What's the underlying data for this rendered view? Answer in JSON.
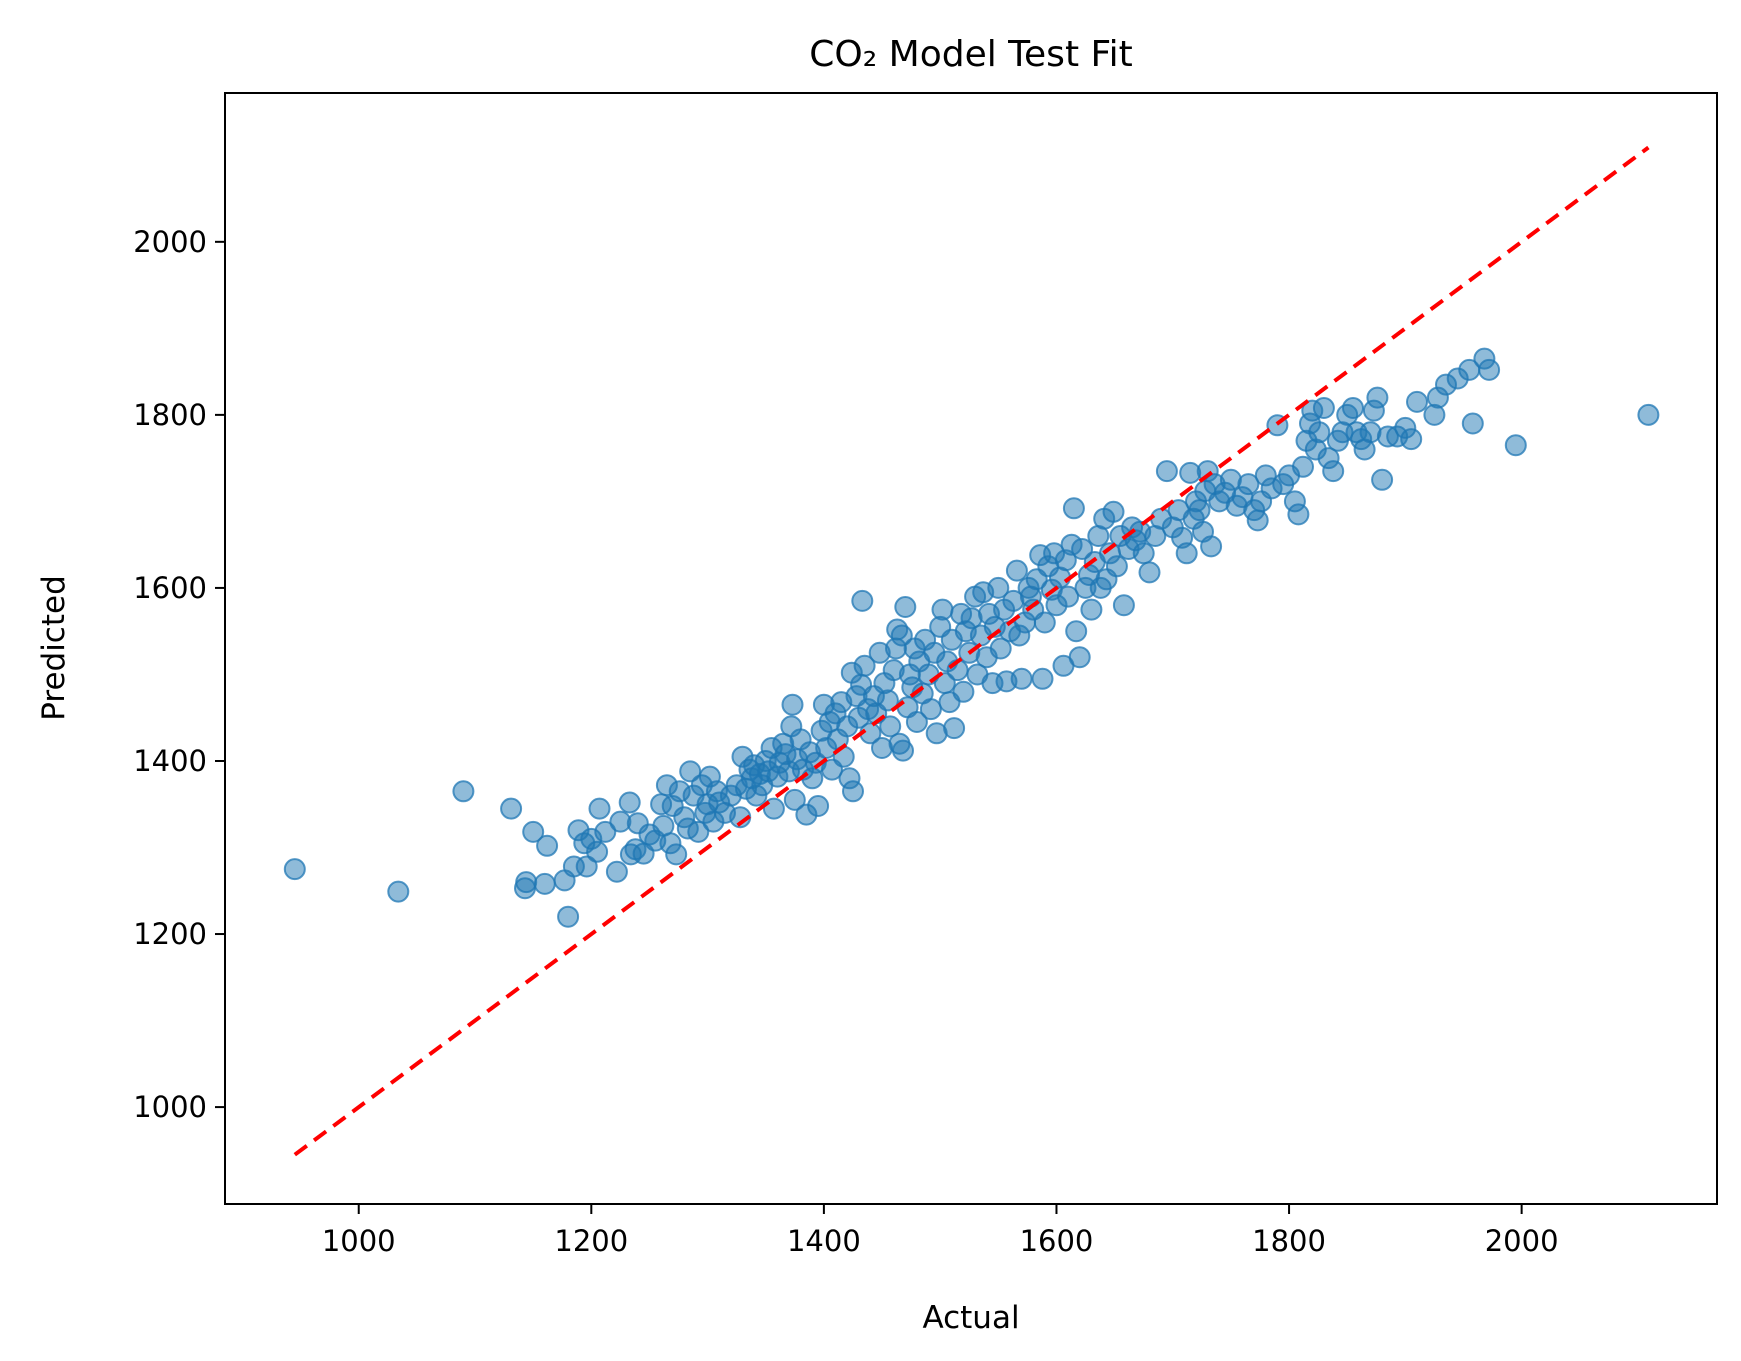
{
  "chart_data": {
    "type": "scatter",
    "title": "CO₂ Model Test Fit",
    "xlabel": "Actual",
    "ylabel": "Predicted",
    "xlim": [
      885,
      2168
    ],
    "ylim": [
      888,
      2172
    ],
    "x_ticks": [
      1000,
      1200,
      1400,
      1600,
      1800,
      2000
    ],
    "y_ticks": [
      1000,
      1200,
      1400,
      1600,
      1800,
      2000
    ],
    "grid": false,
    "legend": "none",
    "colors": {
      "points": "#1f77b4",
      "reference_line": "#ff0000"
    },
    "point_alpha": 0.5,
    "reference_line": {
      "style": "dashed",
      "from": [
        945,
        945
      ],
      "to": [
        2109,
        2109
      ]
    },
    "series": [
      {
        "points": [
          [
            945,
            1275
          ],
          [
            1034,
            1249
          ],
          [
            1090,
            1365
          ],
          [
            1131,
            1345
          ],
          [
            1143,
            1253
          ],
          [
            1144,
            1260
          ],
          [
            1150,
            1318
          ],
          [
            1160,
            1258
          ],
          [
            1162,
            1302
          ],
          [
            1177,
            1262
          ],
          [
            1180,
            1220
          ],
          [
            1185,
            1278
          ],
          [
            1189,
            1320
          ],
          [
            1194,
            1305
          ],
          [
            1196,
            1278
          ],
          [
            1200,
            1310
          ],
          [
            1205,
            1295
          ],
          [
            1207,
            1345
          ],
          [
            1212,
            1318
          ],
          [
            1222,
            1272
          ],
          [
            1225,
            1330
          ],
          [
            1233,
            1352
          ],
          [
            1234,
            1292
          ],
          [
            1238,
            1298
          ],
          [
            1240,
            1328
          ],
          [
            1245,
            1293
          ],
          [
            1250,
            1315
          ],
          [
            1255,
            1308
          ],
          [
            1260,
            1350
          ],
          [
            1262,
            1325
          ],
          [
            1265,
            1372
          ],
          [
            1268,
            1305
          ],
          [
            1270,
            1348
          ],
          [
            1273,
            1292
          ],
          [
            1276,
            1365
          ],
          [
            1280,
            1335
          ],
          [
            1283,
            1322
          ],
          [
            1285,
            1388
          ],
          [
            1288,
            1360
          ],
          [
            1292,
            1318
          ],
          [
            1295,
            1372
          ],
          [
            1298,
            1340
          ],
          [
            1300,
            1350
          ],
          [
            1302,
            1382
          ],
          [
            1305,
            1330
          ],
          [
            1308,
            1365
          ],
          [
            1310,
            1352
          ],
          [
            1315,
            1340
          ],
          [
            1320,
            1360
          ],
          [
            1325,
            1372
          ],
          [
            1328,
            1335
          ],
          [
            1330,
            1405
          ],
          [
            1333,
            1368
          ],
          [
            1336,
            1390
          ],
          [
            1338,
            1380
          ],
          [
            1340,
            1395
          ],
          [
            1342,
            1360
          ],
          [
            1345,
            1385
          ],
          [
            1347,
            1372
          ],
          [
            1350,
            1400
          ],
          [
            1352,
            1388
          ],
          [
            1355,
            1415
          ],
          [
            1357,
            1345
          ],
          [
            1360,
            1382
          ],
          [
            1362,
            1398
          ],
          [
            1365,
            1420
          ],
          [
            1367,
            1408
          ],
          [
            1370,
            1388
          ],
          [
            1372,
            1440
          ],
          [
            1373,
            1465
          ],
          [
            1375,
            1355
          ],
          [
            1377,
            1402
          ],
          [
            1380,
            1425
          ],
          [
            1382,
            1390
          ],
          [
            1385,
            1338
          ],
          [
            1388,
            1410
          ],
          [
            1390,
            1380
          ],
          [
            1393,
            1398
          ],
          [
            1395,
            1348
          ],
          [
            1398,
            1435
          ],
          [
            1400,
            1465
          ],
          [
            1402,
            1415
          ],
          [
            1405,
            1445
          ],
          [
            1407,
            1390
          ],
          [
            1410,
            1455
          ],
          [
            1412,
            1425
          ],
          [
            1415,
            1468
          ],
          [
            1417,
            1405
          ],
          [
            1420,
            1440
          ],
          [
            1422,
            1380
          ],
          [
            1424,
            1502
          ],
          [
            1425,
            1365
          ],
          [
            1428,
            1475
          ],
          [
            1430,
            1450
          ],
          [
            1432,
            1488
          ],
          [
            1433,
            1585
          ],
          [
            1435,
            1510
          ],
          [
            1438,
            1460
          ],
          [
            1440,
            1432
          ],
          [
            1443,
            1475
          ],
          [
            1445,
            1455
          ],
          [
            1448,
            1525
          ],
          [
            1450,
            1415
          ],
          [
            1452,
            1490
          ],
          [
            1455,
            1470
          ],
          [
            1457,
            1440
          ],
          [
            1460,
            1505
          ],
          [
            1462,
            1530
          ],
          [
            1463,
            1552
          ],
          [
            1465,
            1420
          ],
          [
            1467,
            1545
          ],
          [
            1468,
            1412
          ],
          [
            1470,
            1578
          ],
          [
            1472,
            1462
          ],
          [
            1474,
            1500
          ],
          [
            1476,
            1485
          ],
          [
            1478,
            1530
          ],
          [
            1480,
            1445
          ],
          [
            1482,
            1515
          ],
          [
            1485,
            1478
          ],
          [
            1487,
            1540
          ],
          [
            1490,
            1500
          ],
          [
            1492,
            1460
          ],
          [
            1495,
            1525
          ],
          [
            1497,
            1432
          ],
          [
            1500,
            1555
          ],
          [
            1502,
            1575
          ],
          [
            1504,
            1490
          ],
          [
            1506,
            1515
          ],
          [
            1508,
            1468
          ],
          [
            1510,
            1540
          ],
          [
            1512,
            1438
          ],
          [
            1515,
            1505
          ],
          [
            1518,
            1570
          ],
          [
            1520,
            1480
          ],
          [
            1522,
            1550
          ],
          [
            1525,
            1525
          ],
          [
            1527,
            1565
          ],
          [
            1530,
            1590
          ],
          [
            1532,
            1500
          ],
          [
            1535,
            1545
          ],
          [
            1537,
            1595
          ],
          [
            1540,
            1520
          ],
          [
            1542,
            1570
          ],
          [
            1545,
            1490
          ],
          [
            1547,
            1555
          ],
          [
            1550,
            1600
          ],
          [
            1552,
            1530
          ],
          [
            1555,
            1575
          ],
          [
            1557,
            1492
          ],
          [
            1560,
            1550
          ],
          [
            1563,
            1585
          ],
          [
            1566,
            1620
          ],
          [
            1568,
            1545
          ],
          [
            1570,
            1495
          ],
          [
            1573,
            1560
          ],
          [
            1576,
            1600
          ],
          [
            1578,
            1590
          ],
          [
            1580,
            1575
          ],
          [
            1583,
            1610
          ],
          [
            1586,
            1638
          ],
          [
            1588,
            1495
          ],
          [
            1590,
            1560
          ],
          [
            1593,
            1625
          ],
          [
            1596,
            1598
          ],
          [
            1598,
            1640
          ],
          [
            1600,
            1580
          ],
          [
            1603,
            1612
          ],
          [
            1606,
            1510
          ],
          [
            1608,
            1632
          ],
          [
            1610,
            1590
          ],
          [
            1613,
            1650
          ],
          [
            1615,
            1692
          ],
          [
            1617,
            1550
          ],
          [
            1620,
            1520
          ],
          [
            1622,
            1645
          ],
          [
            1625,
            1600
          ],
          [
            1628,
            1615
          ],
          [
            1630,
            1575
          ],
          [
            1633,
            1630
          ],
          [
            1636,
            1660
          ],
          [
            1638,
            1600
          ],
          [
            1641,
            1680
          ],
          [
            1643,
            1610
          ],
          [
            1646,
            1640
          ],
          [
            1649,
            1688
          ],
          [
            1652,
            1625
          ],
          [
            1655,
            1660
          ],
          [
            1658,
            1580
          ],
          [
            1662,
            1645
          ],
          [
            1665,
            1670
          ],
          [
            1668,
            1655
          ],
          [
            1672,
            1665
          ],
          [
            1675,
            1640
          ],
          [
            1680,
            1618
          ],
          [
            1685,
            1660
          ],
          [
            1690,
            1680
          ],
          [
            1695,
            1735
          ],
          [
            1700,
            1670
          ],
          [
            1705,
            1690
          ],
          [
            1708,
            1658
          ],
          [
            1712,
            1640
          ],
          [
            1715,
            1733
          ],
          [
            1718,
            1680
          ],
          [
            1720,
            1700
          ],
          [
            1723,
            1690
          ],
          [
            1726,
            1665
          ],
          [
            1728,
            1712
          ],
          [
            1730,
            1735
          ],
          [
            1733,
            1648
          ],
          [
            1736,
            1720
          ],
          [
            1740,
            1700
          ],
          [
            1745,
            1710
          ],
          [
            1750,
            1725
          ],
          [
            1755,
            1695
          ],
          [
            1760,
            1705
          ],
          [
            1765,
            1720
          ],
          [
            1770,
            1690
          ],
          [
            1773,
            1678
          ],
          [
            1776,
            1700
          ],
          [
            1780,
            1730
          ],
          [
            1785,
            1715
          ],
          [
            1790,
            1788
          ],
          [
            1795,
            1720
          ],
          [
            1800,
            1730
          ],
          [
            1805,
            1700
          ],
          [
            1808,
            1685
          ],
          [
            1812,
            1740
          ],
          [
            1815,
            1770
          ],
          [
            1818,
            1790
          ],
          [
            1820,
            1805
          ],
          [
            1823,
            1760
          ],
          [
            1826,
            1780
          ],
          [
            1830,
            1808
          ],
          [
            1834,
            1750
          ],
          [
            1838,
            1735
          ],
          [
            1842,
            1770
          ],
          [
            1846,
            1780
          ],
          [
            1850,
            1800
          ],
          [
            1855,
            1808
          ],
          [
            1858,
            1780
          ],
          [
            1862,
            1772
          ],
          [
            1865,
            1760
          ],
          [
            1870,
            1780
          ],
          [
            1873,
            1805
          ],
          [
            1876,
            1820
          ],
          [
            1880,
            1725
          ],
          [
            1885,
            1775
          ],
          [
            1893,
            1775
          ],
          [
            1900,
            1785
          ],
          [
            1905,
            1772
          ],
          [
            1910,
            1815
          ],
          [
            1925,
            1800
          ],
          [
            1928,
            1820
          ],
          [
            1935,
            1835
          ],
          [
            1945,
            1842
          ],
          [
            1955,
            1852
          ],
          [
            1958,
            1790
          ],
          [
            1968,
            1865
          ],
          [
            1972,
            1852
          ],
          [
            1995,
            1765
          ],
          [
            2109,
            1800
          ]
        ]
      }
    ]
  }
}
